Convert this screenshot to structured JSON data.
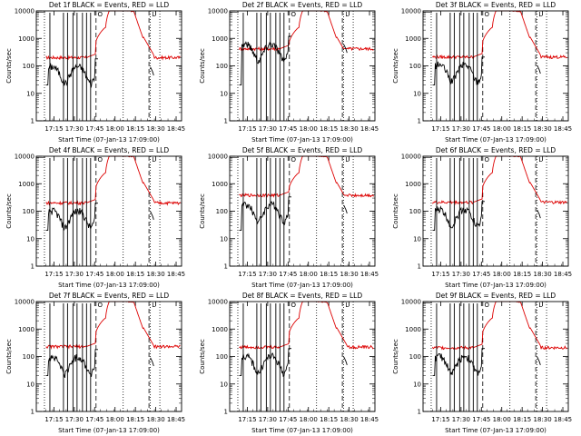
{
  "page": {
    "title": "Detector count-rate plots"
  },
  "colors": {
    "events": "#000000",
    "lld": "#dd0000",
    "axis": "#000000"
  },
  "chart_data": [
    {
      "type": "line",
      "title": "Det 1f BLACK = Events, RED = LLD",
      "xlabel": "Start Time (07-Jan-13 17:09:00)",
      "ylabel": "Counts/sec",
      "xticklabels": [
        "17:15",
        "17:30",
        "17:45",
        "18:00",
        "18:15",
        "18:30",
        "18:45"
      ],
      "yticklabels": [
        "1",
        "10",
        "100",
        "1000",
        "10000"
      ],
      "xlim": [
        -7,
        100
      ],
      "ylim": [
        1,
        10000
      ],
      "yscale": "log",
      "marker_labels": [
        "O",
        "L"
      ],
      "lld_base": 200,
      "event_base": 60,
      "series": [
        {
          "name": "Events",
          "color": "black"
        },
        {
          "name": "LLD",
          "color": "red"
        }
      ]
    },
    {
      "type": "line",
      "title": "Det 2f BLACK = Events, RED = LLD",
      "xlabel": "Start Time (07-Jan-13 17:09:00)",
      "ylabel": "Counts/sec",
      "xticklabels": [
        "17:15",
        "17:30",
        "17:45",
        "18:00",
        "18:15",
        "18:30",
        "18:45"
      ],
      "yticklabels": [
        "1",
        "10",
        "100",
        "1000",
        "10000"
      ],
      "xlim": [
        -7,
        100
      ],
      "ylim": [
        1,
        10000
      ],
      "yscale": "log",
      "marker_labels": [
        "O",
        "L"
      ],
      "lld_base": 420,
      "event_base": 400,
      "series": [
        {
          "name": "Events",
          "color": "black"
        },
        {
          "name": "LLD",
          "color": "red"
        }
      ]
    },
    {
      "type": "line",
      "title": "Det 3f BLACK = Events, RED = LLD",
      "xlabel": "Start Time (07-Jan-13 17:09:00)",
      "ylabel": "Counts/sec",
      "xticklabels": [
        "17:15",
        "17:30",
        "17:45",
        "18:00",
        "18:15",
        "18:30",
        "18:45"
      ],
      "yticklabels": [
        "1",
        "10",
        "100",
        "1000",
        "10000"
      ],
      "xlim": [
        -7,
        100
      ],
      "ylim": [
        1,
        10000
      ],
      "yscale": "log",
      "marker_labels": [
        "O",
        "L"
      ],
      "lld_base": 210,
      "event_base": 70,
      "series": [
        {
          "name": "Events",
          "color": "black"
        },
        {
          "name": "LLD",
          "color": "red"
        }
      ]
    },
    {
      "type": "line",
      "title": "Det 4f BLACK = Events, RED = LLD",
      "xlabel": "Start Time (07-Jan-13 17:09:00)",
      "ylabel": "Counts/sec",
      "xticklabels": [
        "17:15",
        "17:30",
        "17:45",
        "18:00",
        "18:15",
        "18:30",
        "18:45"
      ],
      "yticklabels": [
        "1",
        "10",
        "100",
        "1000",
        "10000"
      ],
      "xlim": [
        -7,
        100
      ],
      "ylim": [
        1,
        10000
      ],
      "yscale": "log",
      "marker_labels": [
        "O",
        "L"
      ],
      "lld_base": 200,
      "event_base": 65,
      "series": [
        {
          "name": "Events",
          "color": "black"
        },
        {
          "name": "LLD",
          "color": "red"
        }
      ]
    },
    {
      "type": "line",
      "title": "Det 5f BLACK = Events, RED = LLD",
      "xlabel": "Start Time (07-Jan-13 17:09:00)",
      "ylabel": "Counts/sec",
      "xticklabels": [
        "17:15",
        "17:30",
        "17:45",
        "18:00",
        "18:15",
        "18:30",
        "18:45"
      ],
      "yticklabels": [
        "1",
        "10",
        "100",
        "1000",
        "10000"
      ],
      "xlim": [
        -7,
        100
      ],
      "ylim": [
        1,
        10000
      ],
      "yscale": "log",
      "marker_labels": [
        "O",
        "L"
      ],
      "lld_base": 380,
      "event_base": 110,
      "series": [
        {
          "name": "Events",
          "color": "black"
        },
        {
          "name": "LLD",
          "color": "red"
        }
      ]
    },
    {
      "type": "line",
      "title": "Det 6f BLACK = Events, RED = LLD",
      "xlabel": "Start Time (07-Jan-13 17:09:00)",
      "ylabel": "Counts/sec",
      "xticklabels": [
        "17:15",
        "17:30",
        "17:45",
        "18:00",
        "18:15",
        "18:30",
        "18:45"
      ],
      "yticklabels": [
        "1",
        "10",
        "100",
        "1000",
        "10000"
      ],
      "xlim": [
        -7,
        100
      ],
      "ylim": [
        1,
        10000
      ],
      "yscale": "log",
      "marker_labels": [
        "O",
        "L"
      ],
      "lld_base": 210,
      "event_base": 75,
      "series": [
        {
          "name": "Events",
          "color": "black"
        },
        {
          "name": "LLD",
          "color": "red"
        }
      ]
    },
    {
      "type": "line",
      "title": "Det 7f BLACK = Events, RED = LLD",
      "xlabel": "Start Time (07-Jan-13 17:09:00)",
      "ylabel": "Counts/sec",
      "xticklabels": [
        "17:15",
        "17:30",
        "17:45",
        "18:00",
        "18:15",
        "18:30",
        "18:45"
      ],
      "yticklabels": [
        "1",
        "10",
        "100",
        "1000",
        "10000"
      ],
      "xlim": [
        -7,
        100
      ],
      "ylim": [
        1,
        10000
      ],
      "yscale": "log",
      "marker_labels": [
        "O",
        "L"
      ],
      "lld_base": 230,
      "event_base": 60,
      "series": [
        {
          "name": "Events",
          "color": "black"
        },
        {
          "name": "LLD",
          "color": "red"
        }
      ]
    },
    {
      "type": "line",
      "title": "Det 8f BLACK = Events, RED = LLD",
      "xlabel": "Start Time (07-Jan-13 17:09:00)",
      "ylabel": "Counts/sec",
      "xticklabels": [
        "17:15",
        "17:30",
        "17:45",
        "18:00",
        "18:15",
        "18:30",
        "18:45"
      ],
      "yticklabels": [
        "1",
        "10",
        "100",
        "1000",
        "10000"
      ],
      "xlim": [
        -7,
        100
      ],
      "ylim": [
        1,
        10000
      ],
      "yscale": "log",
      "marker_labels": [
        "O",
        "L"
      ],
      "lld_base": 220,
      "event_base": 65,
      "series": [
        {
          "name": "Events",
          "color": "black"
        },
        {
          "name": "LLD",
          "color": "red"
        }
      ]
    },
    {
      "type": "line",
      "title": "Det 9f BLACK = Events, RED = LLD",
      "xlabel": "Start Time (07-Jan-13 17:09:00)",
      "ylabel": "Counts/sec",
      "xticklabels": [
        "17:15",
        "17:30",
        "17:45",
        "18:00",
        "18:15",
        "18:30",
        "18:45"
      ],
      "yticklabels": [
        "1",
        "10",
        "100",
        "1000",
        "10000"
      ],
      "xlim": [
        -7,
        100
      ],
      "ylim": [
        1,
        10000
      ],
      "yscale": "log",
      "marker_labels": [
        "O",
        "L"
      ],
      "lld_base": 210,
      "event_base": 65,
      "series": [
        {
          "name": "Events",
          "color": "black"
        },
        {
          "name": "LLD",
          "color": "red"
        }
      ]
    }
  ]
}
